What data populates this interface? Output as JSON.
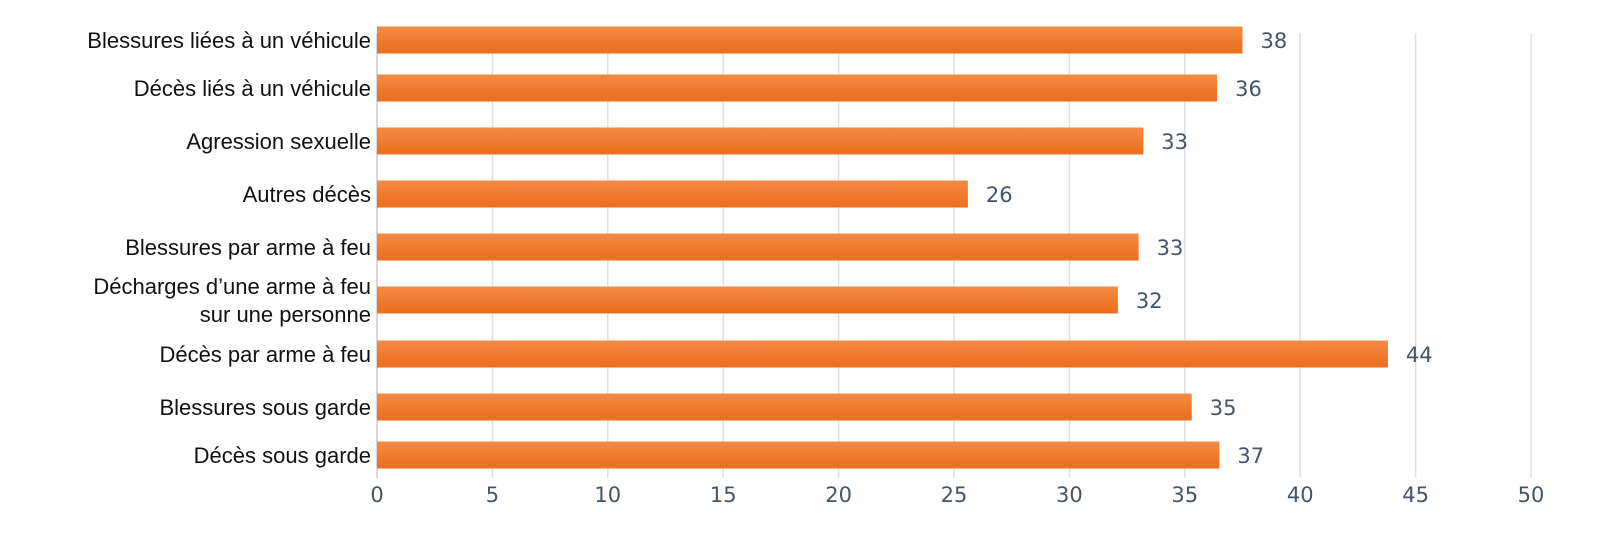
{
  "colors": {
    "bar_top": "#f58a45",
    "bar_bottom": "#ea6e1c",
    "text": "#111111",
    "tick": "#44546a",
    "grid": "#dde1e6"
  },
  "chart_data": {
    "type": "bar",
    "orientation": "horizontal",
    "title": "",
    "xlabel": "",
    "ylabel": "",
    "xlim": [
      0,
      50
    ],
    "ticks": [
      0,
      5,
      10,
      15,
      20,
      25,
      30,
      35,
      40,
      45,
      50
    ],
    "grid": "vertical",
    "legend": "none",
    "categories": [
      [
        "Blessures liées à un véhicule"
      ],
      [
        "Décès liés à un véhicule"
      ],
      [
        "Agression sexuelle"
      ],
      [
        "Autres décès"
      ],
      [
        "Blessures par arme à feu"
      ],
      [
        "Décharges d’une arme à feu",
        "sur une personne"
      ],
      [
        "Décès par arme à feu"
      ],
      [
        "Blessures sous garde"
      ],
      [
        "Décès sous garde"
      ]
    ],
    "values": [
      37.5,
      36.4,
      33.2,
      25.6,
      33.0,
      32.1,
      43.8,
      35.3,
      36.5
    ],
    "data_labels": [
      "38",
      "36",
      "33",
      "26",
      "33",
      "32",
      "44",
      "35",
      "37"
    ]
  }
}
